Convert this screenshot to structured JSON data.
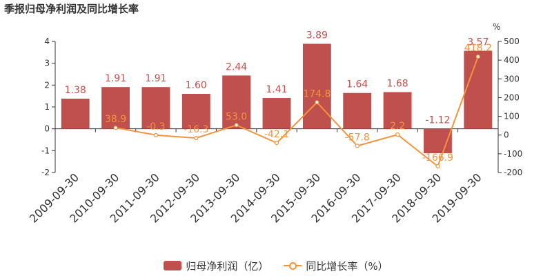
{
  "title": "季报归母净利润及同比增长率",
  "chart_data": {
    "type": "bar+line",
    "categories": [
      "2009-09-30",
      "2010-09-30",
      "2011-09-30",
      "2012-09-30",
      "2013-09-30",
      "2014-09-30",
      "2015-09-30",
      "2016-09-30",
      "2017-09-30",
      "2018-09-30",
      "2019-09-30"
    ],
    "series": [
      {
        "name": "归母净利润（亿）",
        "type": "bar",
        "axis": "left",
        "color": "#c0504d",
        "values": [
          1.38,
          1.91,
          1.91,
          1.6,
          2.44,
          1.41,
          3.89,
          1.64,
          1.68,
          -1.12,
          3.57
        ],
        "labels": [
          "1.38",
          "1.91",
          "1.91",
          "1.60",
          "2.44",
          "1.41",
          "3.89",
          "1.64",
          "1.68",
          "-1.12",
          "3.57"
        ]
      },
      {
        "name": "同比增长率（%）",
        "type": "line",
        "axis": "right",
        "color": "#f4933d",
        "values": [
          null,
          38.9,
          -0.3,
          -16.3,
          53.0,
          -42.1,
          174.8,
          -57.8,
          2.2,
          -166.9,
          418.2
        ],
        "labels": [
          "",
          "38.9",
          "-0.3",
          "-16.3",
          "53.0",
          "-42.1",
          "174.8",
          "-57.8",
          "2.2",
          "-166.9",
          "418.2"
        ]
      }
    ],
    "y_left": {
      "range": [
        -2,
        4
      ],
      "ticks": [
        -2,
        -1,
        0,
        1,
        2,
        3,
        4
      ]
    },
    "y_right": {
      "label": "%",
      "range": [
        -200,
        500
      ],
      "ticks": [
        -200,
        -100,
        0,
        100,
        200,
        300,
        400,
        500
      ]
    },
    "grid": false,
    "legend_position": "bottom-center"
  }
}
